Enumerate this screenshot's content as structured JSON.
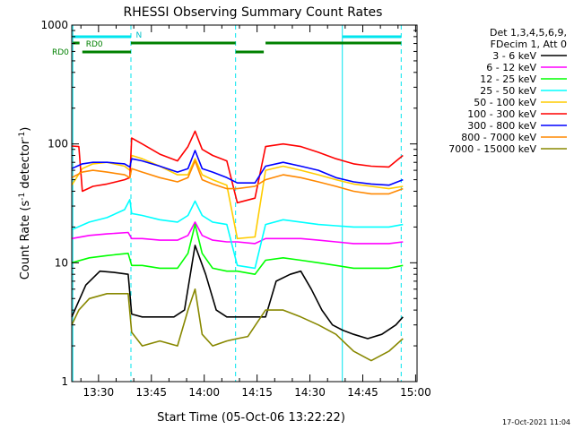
{
  "chart_data": {
    "type": "line",
    "title": "RHESSI Observing Summary Count Rates",
    "xlabel": "Start Time (05-Oct-06 13:22:22)",
    "ylabel_main": "Count Rate (s",
    "ylabel_sup1": "-1",
    "ylabel_mid": " detector",
    "ylabel_sup2": "-1",
    "ylabel_end": ")",
    "yscale": "log",
    "ylim": [
      1,
      1000
    ],
    "xlim_minutes": [
      0,
      98
    ],
    "y_ticks": [
      "1",
      "10",
      "100",
      "1000"
    ],
    "y_tick_values": [
      1,
      10,
      100,
      1000
    ],
    "x_ticks": [
      "13:30",
      "13:45",
      "14:00",
      "14:15",
      "14:30",
      "14:45",
      "15:00"
    ],
    "x_tick_minutes": [
      7.6,
      22.6,
      37.6,
      52.6,
      67.6,
      82.6,
      97.6
    ],
    "legend": {
      "header1": "Det 1,3,4,5,6,9,",
      "header2": "FDecim 1, Att 0",
      "position": "right"
    },
    "footer_timestamp": "17-Oct-2021 11:04",
    "annotations": {
      "night_label": "N",
      "rd0_label1": "RD0",
      "rd0_label2": "RD0"
    },
    "markers_minutes": [
      0.3,
      16.8,
      46.5,
      76.8,
      93.5
    ],
    "series": [
      {
        "name": "3 - 6 keV",
        "color": "#000000",
        "x": [
          0,
          4,
          8,
          12,
          16,
          17,
          20,
          25,
          29,
          32,
          35,
          38,
          41,
          44,
          47,
          52,
          55,
          58,
          62,
          65,
          68,
          71,
          74,
          77,
          80,
          84,
          88,
          92,
          94
        ],
        "y": [
          3.5,
          6.5,
          8.5,
          8.3,
          8.0,
          3.7,
          3.5,
          3.5,
          3.5,
          4.0,
          14.0,
          8.0,
          4.0,
          3.5,
          3.5,
          3.5,
          3.5,
          7.0,
          8.0,
          8.5,
          6.0,
          4.0,
          3.0,
          2.7,
          2.5,
          2.3,
          2.5,
          3.0,
          3.5
        ]
      },
      {
        "name": "6 - 12 keV",
        "color": "#ff00ff",
        "x": [
          0,
          5,
          10,
          16,
          17,
          20,
          25,
          30,
          33,
          35,
          37,
          40,
          44,
          47,
          52,
          55,
          60,
          65,
          70,
          75,
          80,
          85,
          90,
          94
        ],
        "y": [
          16,
          17,
          17.5,
          18,
          16,
          16,
          15.5,
          15.5,
          17,
          22,
          17,
          15.5,
          15,
          15,
          14.5,
          16,
          16,
          16,
          15.5,
          15,
          14.5,
          14.5,
          14.5,
          15
        ]
      },
      {
        "name": "12 - 25 keV",
        "color": "#00ff00",
        "x": [
          0,
          5,
          10,
          16,
          17,
          20,
          25,
          30,
          33,
          35,
          37,
          40,
          44,
          47,
          52,
          55,
          60,
          65,
          70,
          75,
          80,
          85,
          90,
          94
        ],
        "y": [
          10,
          11,
          11.5,
          12,
          9.5,
          9.5,
          9,
          9,
          12,
          21,
          12,
          9,
          8.5,
          8.5,
          8,
          10.5,
          11,
          10.5,
          10,
          9.5,
          9,
          9,
          9,
          9.5
        ]
      },
      {
        "name": "25 - 50 keV",
        "color": "#00ffff",
        "x": [
          0,
          5,
          10,
          15,
          16.5,
          17,
          20,
          25,
          30,
          33,
          35,
          37,
          40,
          44,
          47,
          52,
          55,
          60,
          65,
          70,
          75,
          80,
          85,
          90,
          94
        ],
        "y": [
          19,
          22,
          24,
          28,
          34,
          26,
          25,
          23,
          22,
          25,
          33,
          25,
          22,
          21,
          9.5,
          9,
          21,
          23,
          22,
          21,
          20.5,
          20,
          20,
          20,
          21
        ]
      },
      {
        "name": "50 - 100 keV",
        "color": "#ffcc00",
        "x": [
          0,
          3,
          6,
          10,
          15,
          16.5,
          17,
          20,
          25,
          30,
          33,
          35,
          37,
          40,
          44,
          47,
          52,
          55,
          60,
          65,
          70,
          75,
          80,
          85,
          90,
          94
        ],
        "y": [
          45,
          62,
          68,
          70,
          65,
          60,
          80,
          75,
          65,
          55,
          55,
          75,
          55,
          50,
          45,
          16,
          16.5,
          60,
          65,
          60,
          55,
          50,
          46,
          44,
          42,
          44
        ]
      },
      {
        "name": "100 - 300 keV",
        "color": "#ff0000",
        "x": [
          0,
          2,
          3,
          6,
          10,
          15,
          16.5,
          17,
          20,
          25,
          30,
          33,
          35,
          37,
          40,
          44,
          47,
          52,
          55,
          60,
          65,
          70,
          75,
          80,
          85,
          90,
          94
        ],
        "y": [
          96,
          95,
          40,
          44,
          46,
          50,
          52,
          112,
          100,
          82,
          72,
          95,
          128,
          90,
          80,
          72,
          32,
          35,
          95,
          100,
          95,
          85,
          75,
          68,
          65,
          64,
          80
        ]
      },
      {
        "name": "300 - 800 keV",
        "color": "#0000ff",
        "x": [
          0,
          3,
          6,
          10,
          15,
          16.5,
          17,
          20,
          25,
          30,
          33,
          35,
          37,
          40,
          44,
          47,
          52,
          55,
          60,
          65,
          70,
          75,
          80,
          85,
          90,
          94
        ],
        "y": [
          62,
          68,
          70,
          70,
          68,
          64,
          75,
          72,
          65,
          58,
          62,
          88,
          62,
          58,
          52,
          47,
          47,
          65,
          70,
          65,
          60,
          52,
          48,
          46,
          45,
          50
        ]
      },
      {
        "name": "800 - 7000 keV",
        "color": "#ff8800",
        "x": [
          0,
          3,
          6,
          10,
          15,
          16.5,
          17,
          20,
          25,
          30,
          33,
          35,
          37,
          40,
          44,
          47,
          52,
          55,
          60,
          65,
          70,
          75,
          80,
          85,
          90,
          94
        ],
        "y": [
          52,
          58,
          60,
          58,
          55,
          52,
          62,
          58,
          52,
          48,
          52,
          72,
          50,
          46,
          42,
          42,
          44,
          50,
          55,
          52,
          48,
          44,
          40,
          38,
          38,
          42
        ]
      },
      {
        "name": "7000 - 15000 keV",
        "color": "#888800",
        "x": [
          0,
          2,
          5,
          10,
          16,
          17,
          20,
          25,
          30,
          33,
          35,
          37,
          40,
          44,
          47,
          50,
          55,
          60,
          65,
          70,
          75,
          80,
          85,
          90,
          94
        ],
        "y": [
          3.0,
          4.0,
          5.0,
          5.5,
          5.5,
          2.6,
          2.0,
          2.2,
          2.0,
          4.0,
          6.0,
          2.5,
          2.0,
          2.2,
          2.3,
          2.4,
          4.0,
          4.0,
          3.5,
          3.0,
          2.5,
          1.8,
          1.5,
          1.8,
          2.3
        ]
      }
    ]
  }
}
